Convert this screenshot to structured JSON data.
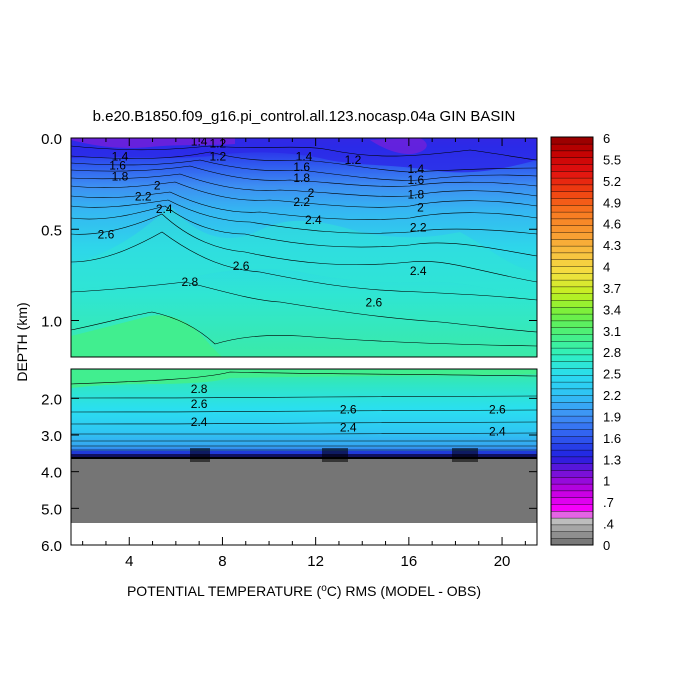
{
  "chart_data": {
    "type": "heatmap",
    "title": "b.e20.B1850.f09_g16.pi_control.all.123.nocasp.04a GIN BASIN",
    "xlabel": "POTENTIAL TEMPERATURE (°C) RMS (MODEL - OBS)",
    "xlabel_parts": {
      "before": "POTENTIAL TEMPERATURE (",
      "superscript": "o",
      "after": "C) RMS (MODEL - OBS)"
    },
    "ylabel": "DEPTH (km)",
    "x_range": [
      1.5,
      21.5
    ],
    "x_ticks": [
      4,
      8,
      12,
      16,
      20
    ],
    "upper_panel": {
      "depth_range_km": [
        0.0,
        1.2
      ],
      "y_ticks": [
        "0.0",
        "0.5",
        "1.0"
      ],
      "y_tick_values": [
        0.0,
        0.5,
        1.0
      ]
    },
    "lower_panel": {
      "depth_range_km": [
        1.2,
        6.0
      ],
      "y_ticks": [
        "2.0",
        "3.0",
        "4.0",
        "5.0",
        "6.0"
      ],
      "y_tick_values": [
        2.0,
        3.0,
        4.0,
        5.0,
        6.0
      ]
    },
    "colorbar": {
      "range": [
        0,
        6
      ],
      "labels": [
        "6",
        "5.5",
        "5.2",
        "4.9",
        "4.6",
        "4.3",
        "4",
        "3.7",
        "3.4",
        "3.1",
        "2.8",
        "2.5",
        "2.2",
        "1.9",
        "1.6",
        "1.3",
        "1",
        ".7",
        ".4",
        "0"
      ],
      "label_values": [
        6,
        5.5,
        5.2,
        4.9,
        4.6,
        4.3,
        4,
        3.7,
        3.4,
        3.1,
        2.8,
        2.5,
        2.2,
        1.9,
        1.6,
        1.3,
        1,
        0.7,
        0.4,
        0
      ]
    },
    "colors": {
      "land": "#757575",
      "frame": "#000000",
      "background": "#ffffff"
    },
    "contour_labels_upper": [
      {
        "text": "1.4",
        "x": 7.0,
        "y": 0.02
      },
      {
        "text": "1.2",
        "x": 7.8,
        "y": 0.03
      },
      {
        "text": "1.2",
        "x": 7.8,
        "y": 0.1
      },
      {
        "text": "1.2",
        "x": 13.6,
        "y": 0.12
      },
      {
        "text": "1.4",
        "x": 3.6,
        "y": 0.1
      },
      {
        "text": "1.6",
        "x": 3.5,
        "y": 0.15
      },
      {
        "text": "1.8",
        "x": 3.6,
        "y": 0.21
      },
      {
        "text": "2",
        "x": 5.2,
        "y": 0.26
      },
      {
        "text": "2.2",
        "x": 4.6,
        "y": 0.32
      },
      {
        "text": "2.4",
        "x": 5.5,
        "y": 0.39
      },
      {
        "text": "2.6",
        "x": 3.0,
        "y": 0.53
      },
      {
        "text": "2.8",
        "x": 6.6,
        "y": 0.79
      },
      {
        "text": "2.6",
        "x": 8.8,
        "y": 0.7
      },
      {
        "text": "1.4",
        "x": 11.5,
        "y": 0.1
      },
      {
        "text": "1.6",
        "x": 11.4,
        "y": 0.16
      },
      {
        "text": "1.8",
        "x": 11.4,
        "y": 0.22
      },
      {
        "text": "2",
        "x": 11.8,
        "y": 0.3
      },
      {
        "text": "2.2",
        "x": 11.4,
        "y": 0.35
      },
      {
        "text": "2.4",
        "x": 11.9,
        "y": 0.45
      },
      {
        "text": "1.4",
        "x": 16.3,
        "y": 0.17
      },
      {
        "text": "1.6",
        "x": 16.3,
        "y": 0.23
      },
      {
        "text": "1.8",
        "x": 16.3,
        "y": 0.31
      },
      {
        "text": "2",
        "x": 16.5,
        "y": 0.38
      },
      {
        "text": "2.2",
        "x": 16.4,
        "y": 0.49
      },
      {
        "text": "2.4",
        "x": 16.4,
        "y": 0.73
      },
      {
        "text": "2.6",
        "x": 14.5,
        "y": 0.9
      }
    ],
    "contour_labels_lower": [
      {
        "text": "2.8",
        "x": 7.0,
        "y": 1.75
      },
      {
        "text": "2.6",
        "x": 7.0,
        "y": 2.15
      },
      {
        "text": "2.4",
        "x": 7.0,
        "y": 2.65
      },
      {
        "text": "2.6",
        "x": 13.4,
        "y": 2.3
      },
      {
        "text": "2.4",
        "x": 13.4,
        "y": 2.8
      },
      {
        "text": "2.6",
        "x": 19.8,
        "y": 2.3
      },
      {
        "text": "2.4",
        "x": 19.8,
        "y": 2.9
      }
    ]
  }
}
